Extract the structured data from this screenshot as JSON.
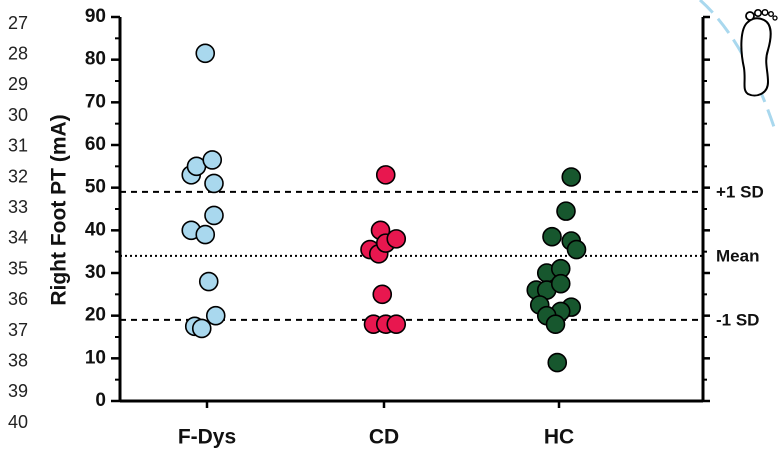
{
  "line_numbers": [
    "27",
    "28",
    "29",
    "30",
    "31",
    "32",
    "33",
    "34",
    "35",
    "36",
    "37",
    "38",
    "39",
    "40"
  ],
  "colors": {
    "fdys": "#a9d8ee",
    "cd": "#e8174f",
    "hc": "#17572e",
    "axis": "#000000",
    "watermark": "#a9d8ee"
  },
  "icon": "right-foot-icon",
  "chart_data": {
    "type": "scatter",
    "ylabel": "Right Foot PT (mA)",
    "ylim": [
      0,
      90
    ],
    "yticks": [
      0,
      10,
      20,
      30,
      40,
      50,
      60,
      70,
      80,
      90
    ],
    "categories": [
      "F-Dys",
      "CD",
      "HC"
    ],
    "grid": false,
    "reference_lines": [
      {
        "label": "+1 SD",
        "value": 49,
        "style": "dashed"
      },
      {
        "label": "Mean",
        "value": 34,
        "style": "dotted"
      },
      {
        "label": "-1 SD",
        "value": 19,
        "style": "dashed"
      }
    ],
    "series": [
      {
        "category": "F-Dys",
        "color": "#a9d8ee",
        "points": [
          [
            -0.45,
            53
          ],
          [
            -0.3,
            55
          ],
          [
            -0.05,
            81.5
          ],
          [
            0.15,
            56.5
          ],
          [
            0.2,
            51
          ],
          [
            0.2,
            43.5
          ],
          [
            -0.45,
            40
          ],
          [
            -0.05,
            39
          ],
          [
            0.05,
            28
          ],
          [
            0.25,
            20
          ],
          [
            -0.35,
            17.5
          ],
          [
            -0.15,
            17
          ]
        ]
      },
      {
        "category": "CD",
        "color": "#e8174f",
        "points": [
          [
            0.05,
            53
          ],
          [
            -0.1,
            40
          ],
          [
            -0.4,
            35.5
          ],
          [
            -0.15,
            34.5
          ],
          [
            0.05,
            37
          ],
          [
            0.35,
            38
          ],
          [
            -0.05,
            25
          ],
          [
            -0.3,
            18
          ],
          [
            0.05,
            18
          ],
          [
            0.35,
            18
          ]
        ]
      },
      {
        "category": "HC",
        "color": "#17572e",
        "points": [
          [
            0.35,
            52.5
          ],
          [
            0.2,
            44.5
          ],
          [
            -0.2,
            38.5
          ],
          [
            0.35,
            37.5
          ],
          [
            0.5,
            35.5
          ],
          [
            -0.35,
            30
          ],
          [
            0.05,
            31
          ],
          [
            -0.65,
            26
          ],
          [
            -0.35,
            26
          ],
          [
            0.05,
            27.5
          ],
          [
            -0.55,
            22.5
          ],
          [
            0.35,
            22
          ],
          [
            0.05,
            21
          ],
          [
            -0.35,
            20
          ],
          [
            -0.1,
            18
          ],
          [
            -0.05,
            9
          ]
        ]
      }
    ]
  }
}
